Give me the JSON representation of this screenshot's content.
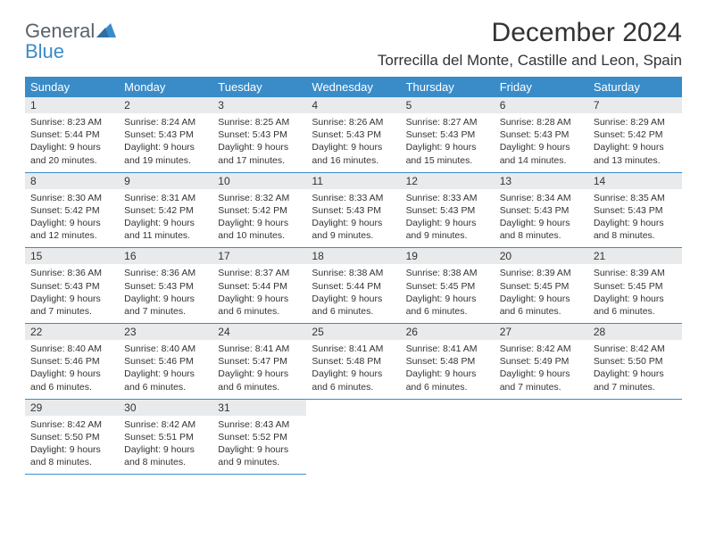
{
  "brand": {
    "word1": "General",
    "word2": "Blue",
    "color_general": "#5a6268",
    "color_blue": "#3a8cc9"
  },
  "title": "December 2024",
  "location": "Torrecilla del Monte, Castille and Leon, Spain",
  "colors": {
    "header_bg": "#3a8cc9",
    "header_fg": "#ffffff",
    "daynum_bg": "#e8eaec",
    "divider": "#3a8cc9",
    "text": "#333333",
    "page_bg": "#ffffff"
  },
  "weekdays": [
    "Sunday",
    "Monday",
    "Tuesday",
    "Wednesday",
    "Thursday",
    "Friday",
    "Saturday"
  ],
  "weeks": [
    [
      {
        "n": "1",
        "sr": "Sunrise: 8:23 AM",
        "ss": "Sunset: 5:44 PM",
        "d1": "Daylight: 9 hours",
        "d2": "and 20 minutes."
      },
      {
        "n": "2",
        "sr": "Sunrise: 8:24 AM",
        "ss": "Sunset: 5:43 PM",
        "d1": "Daylight: 9 hours",
        "d2": "and 19 minutes."
      },
      {
        "n": "3",
        "sr": "Sunrise: 8:25 AM",
        "ss": "Sunset: 5:43 PM",
        "d1": "Daylight: 9 hours",
        "d2": "and 17 minutes."
      },
      {
        "n": "4",
        "sr": "Sunrise: 8:26 AM",
        "ss": "Sunset: 5:43 PM",
        "d1": "Daylight: 9 hours",
        "d2": "and 16 minutes."
      },
      {
        "n": "5",
        "sr": "Sunrise: 8:27 AM",
        "ss": "Sunset: 5:43 PM",
        "d1": "Daylight: 9 hours",
        "d2": "and 15 minutes."
      },
      {
        "n": "6",
        "sr": "Sunrise: 8:28 AM",
        "ss": "Sunset: 5:43 PM",
        "d1": "Daylight: 9 hours",
        "d2": "and 14 minutes."
      },
      {
        "n": "7",
        "sr": "Sunrise: 8:29 AM",
        "ss": "Sunset: 5:42 PM",
        "d1": "Daylight: 9 hours",
        "d2": "and 13 minutes."
      }
    ],
    [
      {
        "n": "8",
        "sr": "Sunrise: 8:30 AM",
        "ss": "Sunset: 5:42 PM",
        "d1": "Daylight: 9 hours",
        "d2": "and 12 minutes."
      },
      {
        "n": "9",
        "sr": "Sunrise: 8:31 AM",
        "ss": "Sunset: 5:42 PM",
        "d1": "Daylight: 9 hours",
        "d2": "and 11 minutes."
      },
      {
        "n": "10",
        "sr": "Sunrise: 8:32 AM",
        "ss": "Sunset: 5:42 PM",
        "d1": "Daylight: 9 hours",
        "d2": "and 10 minutes."
      },
      {
        "n": "11",
        "sr": "Sunrise: 8:33 AM",
        "ss": "Sunset: 5:43 PM",
        "d1": "Daylight: 9 hours",
        "d2": "and 9 minutes."
      },
      {
        "n": "12",
        "sr": "Sunrise: 8:33 AM",
        "ss": "Sunset: 5:43 PM",
        "d1": "Daylight: 9 hours",
        "d2": "and 9 minutes."
      },
      {
        "n": "13",
        "sr": "Sunrise: 8:34 AM",
        "ss": "Sunset: 5:43 PM",
        "d1": "Daylight: 9 hours",
        "d2": "and 8 minutes."
      },
      {
        "n": "14",
        "sr": "Sunrise: 8:35 AM",
        "ss": "Sunset: 5:43 PM",
        "d1": "Daylight: 9 hours",
        "d2": "and 8 minutes."
      }
    ],
    [
      {
        "n": "15",
        "sr": "Sunrise: 8:36 AM",
        "ss": "Sunset: 5:43 PM",
        "d1": "Daylight: 9 hours",
        "d2": "and 7 minutes."
      },
      {
        "n": "16",
        "sr": "Sunrise: 8:36 AM",
        "ss": "Sunset: 5:43 PM",
        "d1": "Daylight: 9 hours",
        "d2": "and 7 minutes."
      },
      {
        "n": "17",
        "sr": "Sunrise: 8:37 AM",
        "ss": "Sunset: 5:44 PM",
        "d1": "Daylight: 9 hours",
        "d2": "and 6 minutes."
      },
      {
        "n": "18",
        "sr": "Sunrise: 8:38 AM",
        "ss": "Sunset: 5:44 PM",
        "d1": "Daylight: 9 hours",
        "d2": "and 6 minutes."
      },
      {
        "n": "19",
        "sr": "Sunrise: 8:38 AM",
        "ss": "Sunset: 5:45 PM",
        "d1": "Daylight: 9 hours",
        "d2": "and 6 minutes."
      },
      {
        "n": "20",
        "sr": "Sunrise: 8:39 AM",
        "ss": "Sunset: 5:45 PM",
        "d1": "Daylight: 9 hours",
        "d2": "and 6 minutes."
      },
      {
        "n": "21",
        "sr": "Sunrise: 8:39 AM",
        "ss": "Sunset: 5:45 PM",
        "d1": "Daylight: 9 hours",
        "d2": "and 6 minutes."
      }
    ],
    [
      {
        "n": "22",
        "sr": "Sunrise: 8:40 AM",
        "ss": "Sunset: 5:46 PM",
        "d1": "Daylight: 9 hours",
        "d2": "and 6 minutes."
      },
      {
        "n": "23",
        "sr": "Sunrise: 8:40 AM",
        "ss": "Sunset: 5:46 PM",
        "d1": "Daylight: 9 hours",
        "d2": "and 6 minutes."
      },
      {
        "n": "24",
        "sr": "Sunrise: 8:41 AM",
        "ss": "Sunset: 5:47 PM",
        "d1": "Daylight: 9 hours",
        "d2": "and 6 minutes."
      },
      {
        "n": "25",
        "sr": "Sunrise: 8:41 AM",
        "ss": "Sunset: 5:48 PM",
        "d1": "Daylight: 9 hours",
        "d2": "and 6 minutes."
      },
      {
        "n": "26",
        "sr": "Sunrise: 8:41 AM",
        "ss": "Sunset: 5:48 PM",
        "d1": "Daylight: 9 hours",
        "d2": "and 6 minutes."
      },
      {
        "n": "27",
        "sr": "Sunrise: 8:42 AM",
        "ss": "Sunset: 5:49 PM",
        "d1": "Daylight: 9 hours",
        "d2": "and 7 minutes."
      },
      {
        "n": "28",
        "sr": "Sunrise: 8:42 AM",
        "ss": "Sunset: 5:50 PM",
        "d1": "Daylight: 9 hours",
        "d2": "and 7 minutes."
      }
    ],
    [
      {
        "n": "29",
        "sr": "Sunrise: 8:42 AM",
        "ss": "Sunset: 5:50 PM",
        "d1": "Daylight: 9 hours",
        "d2": "and 8 minutes."
      },
      {
        "n": "30",
        "sr": "Sunrise: 8:42 AM",
        "ss": "Sunset: 5:51 PM",
        "d1": "Daylight: 9 hours",
        "d2": "and 8 minutes."
      },
      {
        "n": "31",
        "sr": "Sunrise: 8:43 AM",
        "ss": "Sunset: 5:52 PM",
        "d1": "Daylight: 9 hours",
        "d2": "and 9 minutes."
      },
      null,
      null,
      null,
      null
    ]
  ]
}
